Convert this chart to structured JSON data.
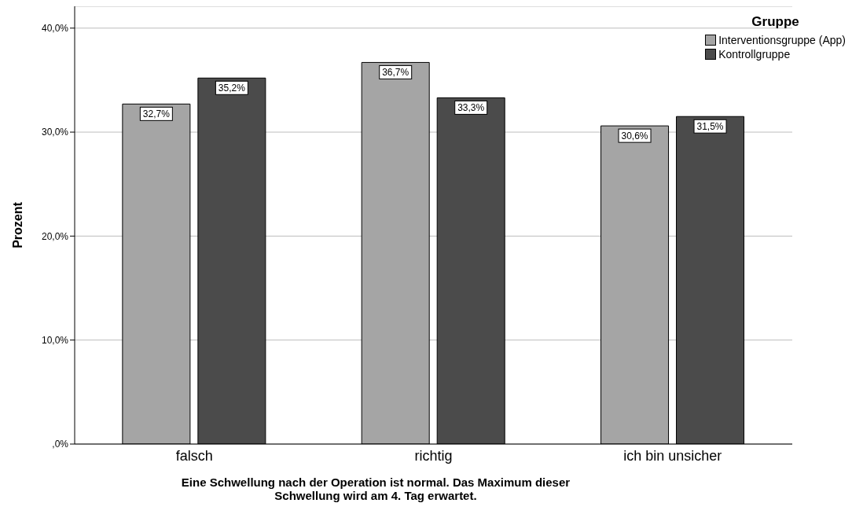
{
  "chart_data": {
    "type": "bar",
    "xlabel": "Eine Schwellung nach der Operation ist normal. Das Maximum dieser Schwellung wird am 4. Tag erwartet.",
    "ylabel": "Prozent",
    "legend_title": "Gruppe",
    "categories": [
      "falsch",
      "richtig",
      "ich bin unsicher"
    ],
    "series": [
      {
        "name": "Interventionsgruppe (App)",
        "color": "#a5a5a5",
        "values": [
          32.7,
          36.7,
          30.6
        ],
        "value_labels": [
          "32,7%",
          "36,7%",
          "30,6%"
        ]
      },
      {
        "name": "Kontrollgruppe",
        "color": "#4b4b4b",
        "values": [
          35.2,
          33.3,
          31.5
        ],
        "value_labels": [
          "35,2%",
          "33,3%",
          "31,5%"
        ]
      }
    ],
    "ylim": [
      0,
      42.1
    ],
    "yticks": [
      {
        "value": 0,
        "label": ",0%"
      },
      {
        "value": 10,
        "label": "10,0%"
      },
      {
        "value": 20,
        "label": "20,0%"
      },
      {
        "value": 30,
        "label": "30,0%"
      },
      {
        "value": 40,
        "label": "40,0%"
      }
    ],
    "grid": "y",
    "legend": "top right"
  }
}
